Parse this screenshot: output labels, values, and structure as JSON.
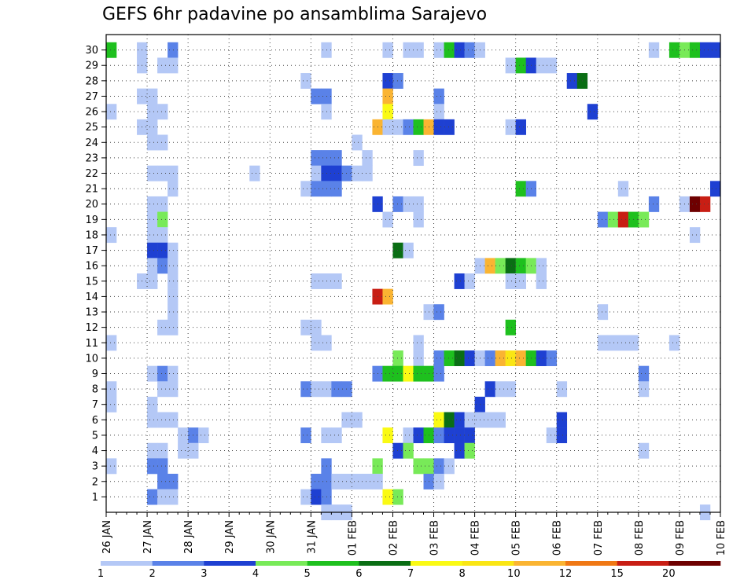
{
  "chart_data": {
    "type": "heatmap",
    "title": "GEFS 6hr padavine po ansamblima Sarajevo",
    "xlabel": "",
    "ylabel": "",
    "x_tick_labels": [
      "26 JAN",
      "27 JAN",
      "28 JAN",
      "29 JAN",
      "30 JAN",
      "31 JAN",
      "01 FEB",
      "02 FEB",
      "03 FEB",
      "04 FEB",
      "05 FEB",
      "06 FEB",
      "07 FEB",
      "08 FEB",
      "09 FEB",
      "10 FEB"
    ],
    "y_tick_labels": [
      "1",
      "2",
      "3",
      "4",
      "5",
      "6",
      "7",
      "8",
      "9",
      "10",
      "11",
      "12",
      "13",
      "14",
      "15",
      "16",
      "17",
      "18",
      "19",
      "20",
      "21",
      "22",
      "23",
      "24",
      "25",
      "26",
      "27",
      "28",
      "29",
      "30"
    ],
    "x_range_days": [
      0,
      15
    ],
    "steps_per_day": 4,
    "grid": true,
    "colorbar": {
      "tick_labels": [
        "1",
        "2",
        "3",
        "4",
        "5",
        "6",
        "7",
        "8",
        "10",
        "12",
        "15",
        "20"
      ],
      "colors": [
        "#b4c8f6",
        "#5a82e8",
        "#1e40d2",
        "#78ea58",
        "#1ec01e",
        "#0a6e14",
        "#fafa14",
        "#fae614",
        "#fab432",
        "#f07814",
        "#c81e14",
        "#6e0000"
      ]
    },
    "cells_note": "each cell: [member, six-hour step index from 26 JAN 00Z, color class 0..11]",
    "cells": [
      [
        30,
        0,
        4
      ],
      [
        30,
        3,
        0
      ],
      [
        30,
        6,
        1
      ],
      [
        30,
        21,
        0
      ],
      [
        30,
        27,
        0
      ],
      [
        30,
        29,
        0
      ],
      [
        30,
        30,
        0
      ],
      [
        30,
        32,
        0
      ],
      [
        30,
        33,
        4
      ],
      [
        30,
        34,
        2
      ],
      [
        30,
        35,
        1
      ],
      [
        30,
        36,
        0
      ],
      [
        30,
        53,
        0
      ],
      [
        30,
        55,
        4
      ],
      [
        30,
        56,
        3
      ],
      [
        30,
        57,
        4
      ],
      [
        30,
        58,
        2
      ],
      [
        30,
        59,
        2
      ],
      [
        29,
        3,
        0
      ],
      [
        29,
        5,
        0
      ],
      [
        29,
        6,
        0
      ],
      [
        29,
        39,
        0
      ],
      [
        29,
        40,
        4
      ],
      [
        29,
        41,
        2
      ],
      [
        29,
        42,
        0
      ],
      [
        29,
        43,
        0
      ],
      [
        28,
        19,
        0
      ],
      [
        28,
        27,
        2
      ],
      [
        28,
        28,
        1
      ],
      [
        28,
        45,
        2
      ],
      [
        28,
        46,
        5
      ],
      [
        27,
        3,
        0
      ],
      [
        27,
        4,
        0
      ],
      [
        27,
        20,
        1
      ],
      [
        27,
        21,
        1
      ],
      [
        27,
        27,
        8
      ],
      [
        27,
        32,
        1
      ],
      [
        26,
        0,
        0
      ],
      [
        26,
        4,
        0
      ],
      [
        26,
        5,
        0
      ],
      [
        26,
        21,
        0
      ],
      [
        26,
        27,
        6
      ],
      [
        26,
        32,
        0
      ],
      [
        26,
        47,
        2
      ],
      [
        25,
        3,
        0
      ],
      [
        25,
        4,
        0
      ],
      [
        25,
        26,
        8
      ],
      [
        25,
        27,
        0
      ],
      [
        25,
        28,
        0
      ],
      [
        25,
        29,
        1
      ],
      [
        25,
        30,
        4
      ],
      [
        25,
        31,
        8
      ],
      [
        25,
        32,
        2
      ],
      [
        25,
        33,
        2
      ],
      [
        25,
        39,
        0
      ],
      [
        25,
        40,
        2
      ],
      [
        24,
        4,
        0
      ],
      [
        24,
        5,
        0
      ],
      [
        24,
        24,
        0
      ],
      [
        23,
        20,
        1
      ],
      [
        23,
        21,
        1
      ],
      [
        23,
        22,
        1
      ],
      [
        23,
        25,
        0
      ],
      [
        23,
        30,
        0
      ],
      [
        22,
        4,
        0
      ],
      [
        22,
        5,
        0
      ],
      [
        22,
        6,
        0
      ],
      [
        22,
        14,
        0
      ],
      [
        22,
        20,
        0
      ],
      [
        22,
        21,
        2
      ],
      [
        22,
        22,
        2
      ],
      [
        22,
        23,
        1
      ],
      [
        22,
        24,
        0
      ],
      [
        22,
        25,
        0
      ],
      [
        21,
        6,
        0
      ],
      [
        21,
        19,
        0
      ],
      [
        21,
        20,
        1
      ],
      [
        21,
        21,
        1
      ],
      [
        21,
        22,
        1
      ],
      [
        21,
        40,
        4
      ],
      [
        21,
        41,
        1
      ],
      [
        21,
        50,
        0
      ],
      [
        21,
        59,
        2
      ],
      [
        20,
        4,
        0
      ],
      [
        20,
        5,
        0
      ],
      [
        20,
        26,
        2
      ],
      [
        20,
        28,
        1
      ],
      [
        20,
        29,
        0
      ],
      [
        20,
        30,
        0
      ],
      [
        20,
        53,
        1
      ],
      [
        20,
        56,
        0
      ],
      [
        20,
        57,
        11
      ],
      [
        20,
        58,
        10
      ],
      [
        19,
        4,
        0
      ],
      [
        19,
        5,
        3
      ],
      [
        19,
        27,
        0
      ],
      [
        19,
        30,
        0
      ],
      [
        19,
        48,
        1
      ],
      [
        19,
        49,
        3
      ],
      [
        19,
        50,
        10
      ],
      [
        19,
        51,
        4
      ],
      [
        19,
        52,
        3
      ],
      [
        18,
        0,
        0
      ],
      [
        18,
        4,
        0
      ],
      [
        18,
        5,
        0
      ],
      [
        18,
        57,
        0
      ],
      [
        17,
        4,
        2
      ],
      [
        17,
        5,
        2
      ],
      [
        17,
        6,
        0
      ],
      [
        17,
        28,
        5
      ],
      [
        17,
        29,
        0
      ],
      [
        16,
        4,
        0
      ],
      [
        16,
        5,
        1
      ],
      [
        16,
        6,
        0
      ],
      [
        16,
        36,
        0
      ],
      [
        16,
        37,
        8
      ],
      [
        16,
        38,
        3
      ],
      [
        16,
        39,
        5
      ],
      [
        16,
        40,
        4
      ],
      [
        16,
        41,
        3
      ],
      [
        16,
        42,
        0
      ],
      [
        15,
        3,
        0
      ],
      [
        15,
        4,
        0
      ],
      [
        15,
        6,
        0
      ],
      [
        15,
        20,
        0
      ],
      [
        15,
        21,
        0
      ],
      [
        15,
        22,
        0
      ],
      [
        15,
        34,
        2
      ],
      [
        15,
        35,
        0
      ],
      [
        15,
        39,
        0
      ],
      [
        15,
        40,
        0
      ],
      [
        15,
        42,
        0
      ],
      [
        14,
        6,
        0
      ],
      [
        14,
        26,
        10
      ],
      [
        14,
        27,
        8
      ],
      [
        13,
        6,
        0
      ],
      [
        13,
        31,
        0
      ],
      [
        13,
        32,
        1
      ],
      [
        13,
        48,
        0
      ],
      [
        12,
        5,
        0
      ],
      [
        12,
        6,
        0
      ],
      [
        12,
        19,
        0
      ],
      [
        12,
        20,
        0
      ],
      [
        12,
        39,
        4
      ],
      [
        11,
        0,
        0
      ],
      [
        11,
        20,
        0
      ],
      [
        11,
        21,
        0
      ],
      [
        11,
        30,
        0
      ],
      [
        11,
        48,
        0
      ],
      [
        11,
        49,
        0
      ],
      [
        11,
        50,
        0
      ],
      [
        11,
        51,
        0
      ],
      [
        11,
        55,
        0
      ],
      [
        10,
        28,
        3
      ],
      [
        10,
        30,
        0
      ],
      [
        10,
        32,
        1
      ],
      [
        10,
        33,
        4
      ],
      [
        10,
        34,
        5
      ],
      [
        10,
        35,
        2
      ],
      [
        10,
        36,
        0
      ],
      [
        10,
        37,
        1
      ],
      [
        10,
        38,
        8
      ],
      [
        10,
        39,
        7
      ],
      [
        10,
        40,
        8
      ],
      [
        10,
        41,
        4
      ],
      [
        10,
        42,
        2
      ],
      [
        10,
        43,
        1
      ],
      [
        9,
        4,
        0
      ],
      [
        9,
        5,
        1
      ],
      [
        9,
        6,
        0
      ],
      [
        9,
        26,
        1
      ],
      [
        9,
        27,
        4
      ],
      [
        9,
        28,
        4
      ],
      [
        9,
        29,
        6
      ],
      [
        9,
        30,
        4
      ],
      [
        9,
        31,
        4
      ],
      [
        9,
        32,
        1
      ],
      [
        9,
        52,
        1
      ],
      [
        8,
        0,
        0
      ],
      [
        8,
        5,
        0
      ],
      [
        8,
        6,
        0
      ],
      [
        8,
        19,
        1
      ],
      [
        8,
        20,
        0
      ],
      [
        8,
        21,
        0
      ],
      [
        8,
        22,
        1
      ],
      [
        8,
        23,
        1
      ],
      [
        8,
        37,
        2
      ],
      [
        8,
        38,
        0
      ],
      [
        8,
        39,
        0
      ],
      [
        8,
        44,
        0
      ],
      [
        8,
        52,
        0
      ],
      [
        7,
        0,
        0
      ],
      [
        7,
        4,
        0
      ],
      [
        7,
        36,
        2
      ],
      [
        6,
        4,
        0
      ],
      [
        6,
        5,
        0
      ],
      [
        6,
        6,
        0
      ],
      [
        6,
        23,
        0
      ],
      [
        6,
        24,
        0
      ],
      [
        6,
        32,
        6
      ],
      [
        6,
        33,
        5
      ],
      [
        6,
        34,
        2
      ],
      [
        6,
        35,
        0
      ],
      [
        6,
        36,
        0
      ],
      [
        6,
        37,
        0
      ],
      [
        6,
        38,
        0
      ],
      [
        6,
        44,
        2
      ],
      [
        5,
        7,
        0
      ],
      [
        5,
        8,
        1
      ],
      [
        5,
        9,
        0
      ],
      [
        5,
        19,
        1
      ],
      [
        5,
        21,
        0
      ],
      [
        5,
        22,
        0
      ],
      [
        5,
        27,
        6
      ],
      [
        5,
        29,
        0
      ],
      [
        5,
        30,
        2
      ],
      [
        5,
        31,
        4
      ],
      [
        5,
        32,
        1
      ],
      [
        5,
        33,
        2
      ],
      [
        5,
        34,
        2
      ],
      [
        5,
        35,
        2
      ],
      [
        5,
        43,
        0
      ],
      [
        5,
        44,
        2
      ],
      [
        4,
        4,
        0
      ],
      [
        4,
        5,
        0
      ],
      [
        4,
        7,
        0
      ],
      [
        4,
        8,
        0
      ],
      [
        4,
        28,
        2
      ],
      [
        4,
        29,
        3
      ],
      [
        4,
        34,
        2
      ],
      [
        4,
        35,
        3
      ],
      [
        4,
        52,
        0
      ],
      [
        3,
        0,
        0
      ],
      [
        3,
        4,
        1
      ],
      [
        3,
        5,
        1
      ],
      [
        3,
        21,
        1
      ],
      [
        3,
        26,
        3
      ],
      [
        3,
        30,
        3
      ],
      [
        3,
        31,
        3
      ],
      [
        3,
        32,
        1
      ],
      [
        3,
        33,
        0
      ],
      [
        2,
        5,
        1
      ],
      [
        2,
        6,
        1
      ],
      [
        2,
        20,
        1
      ],
      [
        2,
        21,
        1
      ],
      [
        2,
        22,
        0
      ],
      [
        2,
        23,
        0
      ],
      [
        2,
        24,
        0
      ],
      [
        2,
        25,
        0
      ],
      [
        2,
        26,
        0
      ],
      [
        2,
        31,
        1
      ],
      [
        2,
        32,
        0
      ],
      [
        1,
        4,
        1
      ],
      [
        1,
        5,
        0
      ],
      [
        1,
        6,
        0
      ],
      [
        1,
        19,
        0
      ],
      [
        1,
        20,
        2
      ],
      [
        1,
        21,
        1
      ],
      [
        1,
        27,
        6
      ],
      [
        1,
        28,
        3
      ],
      [
        0,
        21,
        0
      ],
      [
        0,
        22,
        0
      ],
      [
        0,
        23,
        0
      ],
      [
        0,
        58,
        0
      ]
    ]
  }
}
